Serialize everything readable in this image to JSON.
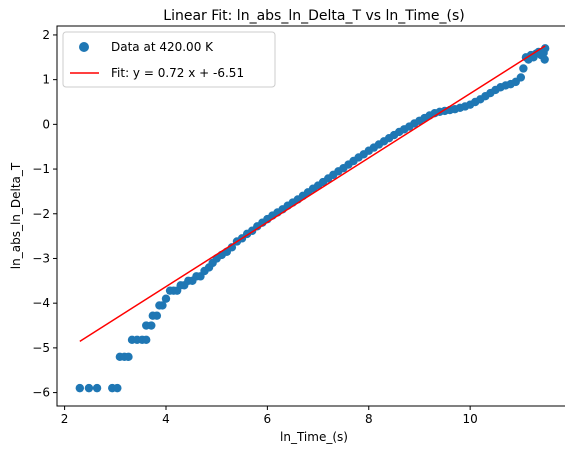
{
  "chart_data": {
    "type": "scatter",
    "title": "Linear Fit: ln_abs_ln_Delta_T vs ln_Time_(s)",
    "xlabel": "ln_Time_(s)",
    "ylabel": "ln_abs_ln_Delta_T",
    "xlim": [
      1.85,
      11.95
    ],
    "ylim": [
      -6.3,
      2.2
    ],
    "xticks": [
      2,
      4,
      6,
      8,
      10
    ],
    "yticks": [
      -6,
      -5,
      -4,
      -3,
      -2,
      -1,
      0,
      1,
      2
    ],
    "grid": false,
    "legend_position": "upper left",
    "series": [
      {
        "name": "Data at 420.00 K",
        "kind": "scatter",
        "color": "#1f77b4",
        "points": [
          [
            2.3,
            -5.9
          ],
          [
            2.48,
            -5.9
          ],
          [
            2.64,
            -5.9
          ],
          [
            2.94,
            -5.9
          ],
          [
            3.04,
            -5.9
          ],
          [
            3.09,
            -5.2
          ],
          [
            3.18,
            -5.2
          ],
          [
            3.26,
            -5.2
          ],
          [
            3.33,
            -4.82
          ],
          [
            3.43,
            -4.82
          ],
          [
            3.53,
            -4.82
          ],
          [
            3.61,
            -4.82
          ],
          [
            3.61,
            -4.5
          ],
          [
            3.71,
            -4.5
          ],
          [
            3.74,
            -4.28
          ],
          [
            3.82,
            -4.28
          ],
          [
            3.87,
            -4.05
          ],
          [
            3.93,
            -4.05
          ],
          [
            4.0,
            -3.9
          ],
          [
            4.08,
            -3.72
          ],
          [
            4.15,
            -3.72
          ],
          [
            4.22,
            -3.72
          ],
          [
            4.29,
            -3.6
          ],
          [
            4.36,
            -3.6
          ],
          [
            4.44,
            -3.5
          ],
          [
            4.52,
            -3.5
          ],
          [
            4.6,
            -3.4
          ],
          [
            4.68,
            -3.4
          ],
          [
            4.76,
            -3.28
          ],
          [
            4.85,
            -3.2
          ],
          [
            4.92,
            -3.1
          ],
          [
            5.0,
            -3.0
          ],
          [
            5.1,
            -2.92
          ],
          [
            5.2,
            -2.85
          ],
          [
            5.3,
            -2.75
          ],
          [
            5.4,
            -2.62
          ],
          [
            5.5,
            -2.55
          ],
          [
            5.6,
            -2.45
          ],
          [
            5.7,
            -2.38
          ],
          [
            5.8,
            -2.28
          ],
          [
            5.9,
            -2.2
          ],
          [
            6.0,
            -2.12
          ],
          [
            6.1,
            -2.04
          ],
          [
            6.2,
            -1.97
          ],
          [
            6.3,
            -1.9
          ],
          [
            6.4,
            -1.82
          ],
          [
            6.5,
            -1.75
          ],
          [
            6.6,
            -1.68
          ],
          [
            6.7,
            -1.6
          ],
          [
            6.8,
            -1.52
          ],
          [
            6.9,
            -1.44
          ],
          [
            7.0,
            -1.37
          ],
          [
            7.1,
            -1.29
          ],
          [
            7.2,
            -1.21
          ],
          [
            7.3,
            -1.13
          ],
          [
            7.4,
            -1.05
          ],
          [
            7.5,
            -0.98
          ],
          [
            7.6,
            -0.9
          ],
          [
            7.7,
            -0.82
          ],
          [
            7.8,
            -0.74
          ],
          [
            7.9,
            -0.67
          ],
          [
            8.0,
            -0.59
          ],
          [
            8.1,
            -0.52
          ],
          [
            8.2,
            -0.45
          ],
          [
            8.3,
            -0.38
          ],
          [
            8.4,
            -0.31
          ],
          [
            8.5,
            -0.24
          ],
          [
            8.6,
            -0.17
          ],
          [
            8.7,
            -0.11
          ],
          [
            8.8,
            -0.05
          ],
          [
            8.9,
            0.02
          ],
          [
            9.0,
            0.08
          ],
          [
            9.1,
            0.14
          ],
          [
            9.2,
            0.2
          ],
          [
            9.3,
            0.25
          ],
          [
            9.4,
            0.28
          ],
          [
            9.5,
            0.3
          ],
          [
            9.6,
            0.32
          ],
          [
            9.7,
            0.34
          ],
          [
            9.8,
            0.37
          ],
          [
            9.9,
            0.4
          ],
          [
            10.0,
            0.44
          ],
          [
            10.1,
            0.5
          ],
          [
            10.2,
            0.56
          ],
          [
            10.3,
            0.63
          ],
          [
            10.4,
            0.7
          ],
          [
            10.5,
            0.77
          ],
          [
            10.6,
            0.83
          ],
          [
            10.7,
            0.87
          ],
          [
            10.8,
            0.9
          ],
          [
            10.9,
            0.95
          ],
          [
            11.0,
            1.05
          ],
          [
            11.05,
            1.25
          ],
          [
            11.1,
            1.5
          ],
          [
            11.15,
            1.45
          ],
          [
            11.2,
            1.55
          ],
          [
            11.25,
            1.5
          ],
          [
            11.3,
            1.58
          ],
          [
            11.35,
            1.62
          ],
          [
            11.4,
            1.55
          ],
          [
            11.45,
            1.6
          ],
          [
            11.47,
            1.45
          ],
          [
            11.48,
            1.7
          ]
        ]
      },
      {
        "name": "Fit: y = 0.72 x + -6.51",
        "kind": "line",
        "color": "#ff0000",
        "slope": 0.72,
        "intercept": -6.51,
        "x_range": [
          2.3,
          11.48
        ]
      }
    ]
  }
}
